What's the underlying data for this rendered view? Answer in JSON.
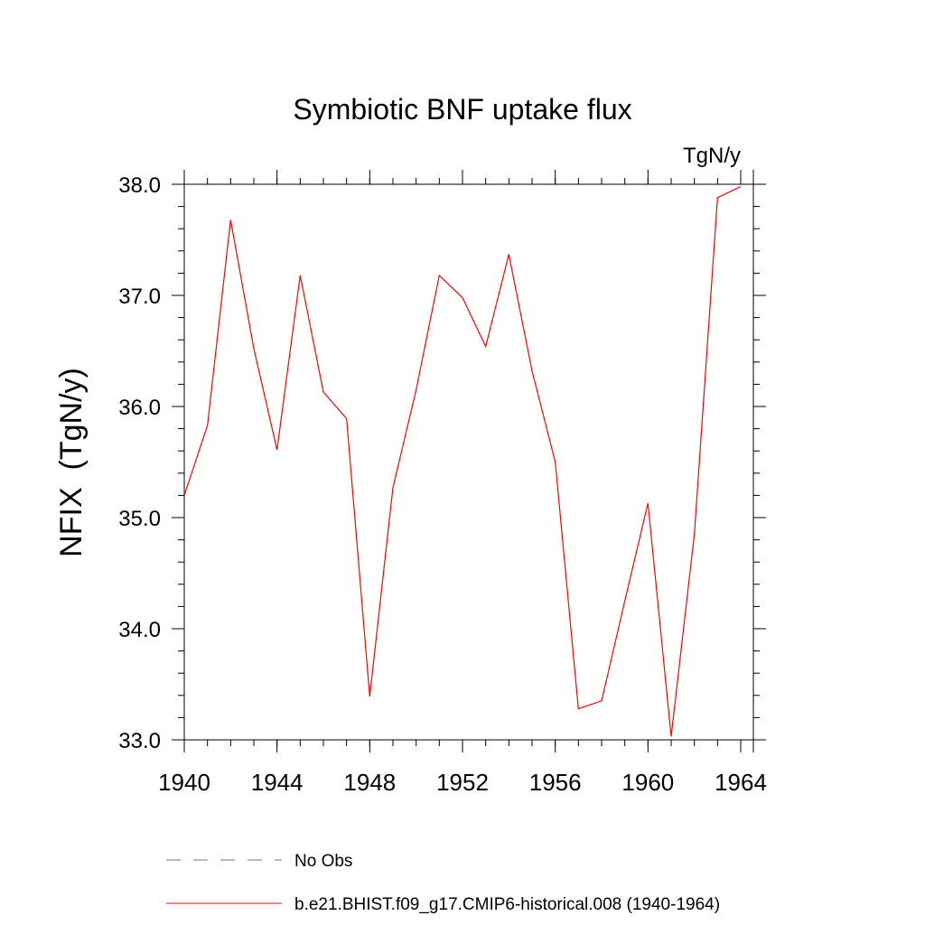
{
  "chart_data": {
    "type": "line",
    "title": "Symbiotic BNF uptake flux",
    "units_label": "TgN/y",
    "ylabel": "NFIX  (TgN/y)",
    "xlabel": "",
    "xlim": [
      1940,
      1964
    ],
    "ylim": [
      33.0,
      38.0
    ],
    "x_ticks": [
      1940,
      1944,
      1948,
      1952,
      1956,
      1960,
      1964
    ],
    "x_tick_labels": [
      "1940",
      "1944",
      "1948",
      "1952",
      "1956",
      "1960",
      "1964"
    ],
    "y_ticks": [
      33.0,
      34.0,
      35.0,
      36.0,
      37.0,
      38.0
    ],
    "y_tick_labels": [
      "33.0",
      "34.0",
      "35.0",
      "36.0",
      "37.0",
      "38.0"
    ],
    "grid": false,
    "legend_position": "bottom",
    "series": [
      {
        "name": "b.e21.BHIST.f09_g17.CMIP6-historical.008 (1940-1964)",
        "color": "#ff0000",
        "style": "solid",
        "x": [
          1940,
          1941,
          1942,
          1943,
          1944,
          1945,
          1946,
          1947,
          1948,
          1949,
          1950,
          1951,
          1952,
          1953,
          1954,
          1955,
          1956,
          1957,
          1958,
          1959,
          1960,
          1961,
          1962,
          1963,
          1964
        ],
        "y": [
          35.2,
          35.83,
          37.68,
          36.52,
          35.61,
          37.18,
          36.13,
          35.89,
          33.39,
          35.27,
          36.15,
          37.18,
          36.98,
          36.54,
          37.37,
          36.32,
          35.5,
          33.28,
          33.35,
          34.25,
          35.13,
          33.03,
          34.85,
          37.88,
          37.98
        ]
      }
    ],
    "legend": [
      {
        "label": "No Obs",
        "color": "#6a6acd",
        "style": "dashed"
      },
      {
        "label": "b.e21.BHIST.f09_g17.CMIP6-historical.008 (1940-1964)",
        "color": "#ff0000",
        "style": "solid"
      }
    ]
  }
}
